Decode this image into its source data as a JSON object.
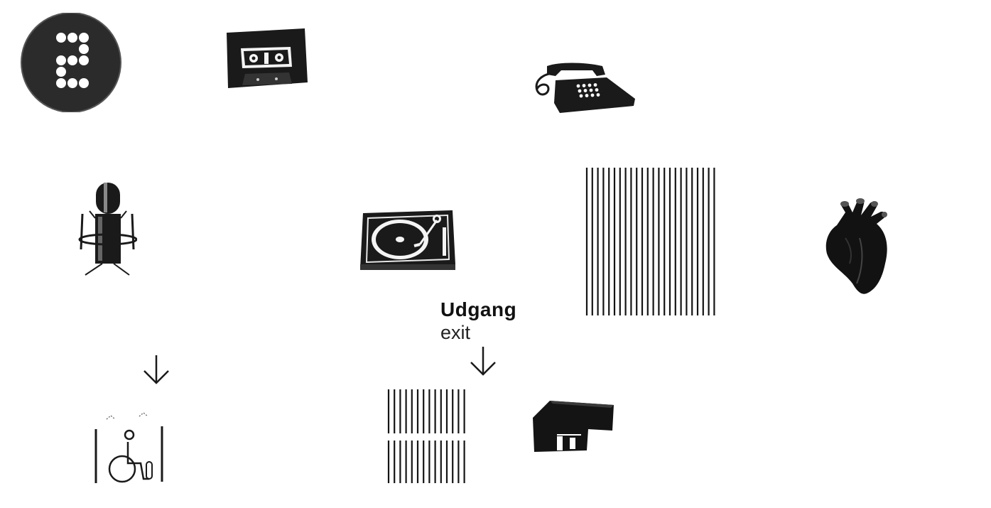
{
  "exit_sign": {
    "title": "Udgang",
    "subtitle": "exit"
  },
  "icons": [
    "badge-2-icon",
    "cassette-tape-icon",
    "telephone-icon",
    "microphone-icon",
    "turntable-icon",
    "vertical-lines-panel-icon",
    "heart-icon",
    "wheelchair-elevator-icon",
    "striped-door-icon",
    "building-block-icon"
  ],
  "colors": {
    "ink": "#111111",
    "background": "#ffffff"
  }
}
